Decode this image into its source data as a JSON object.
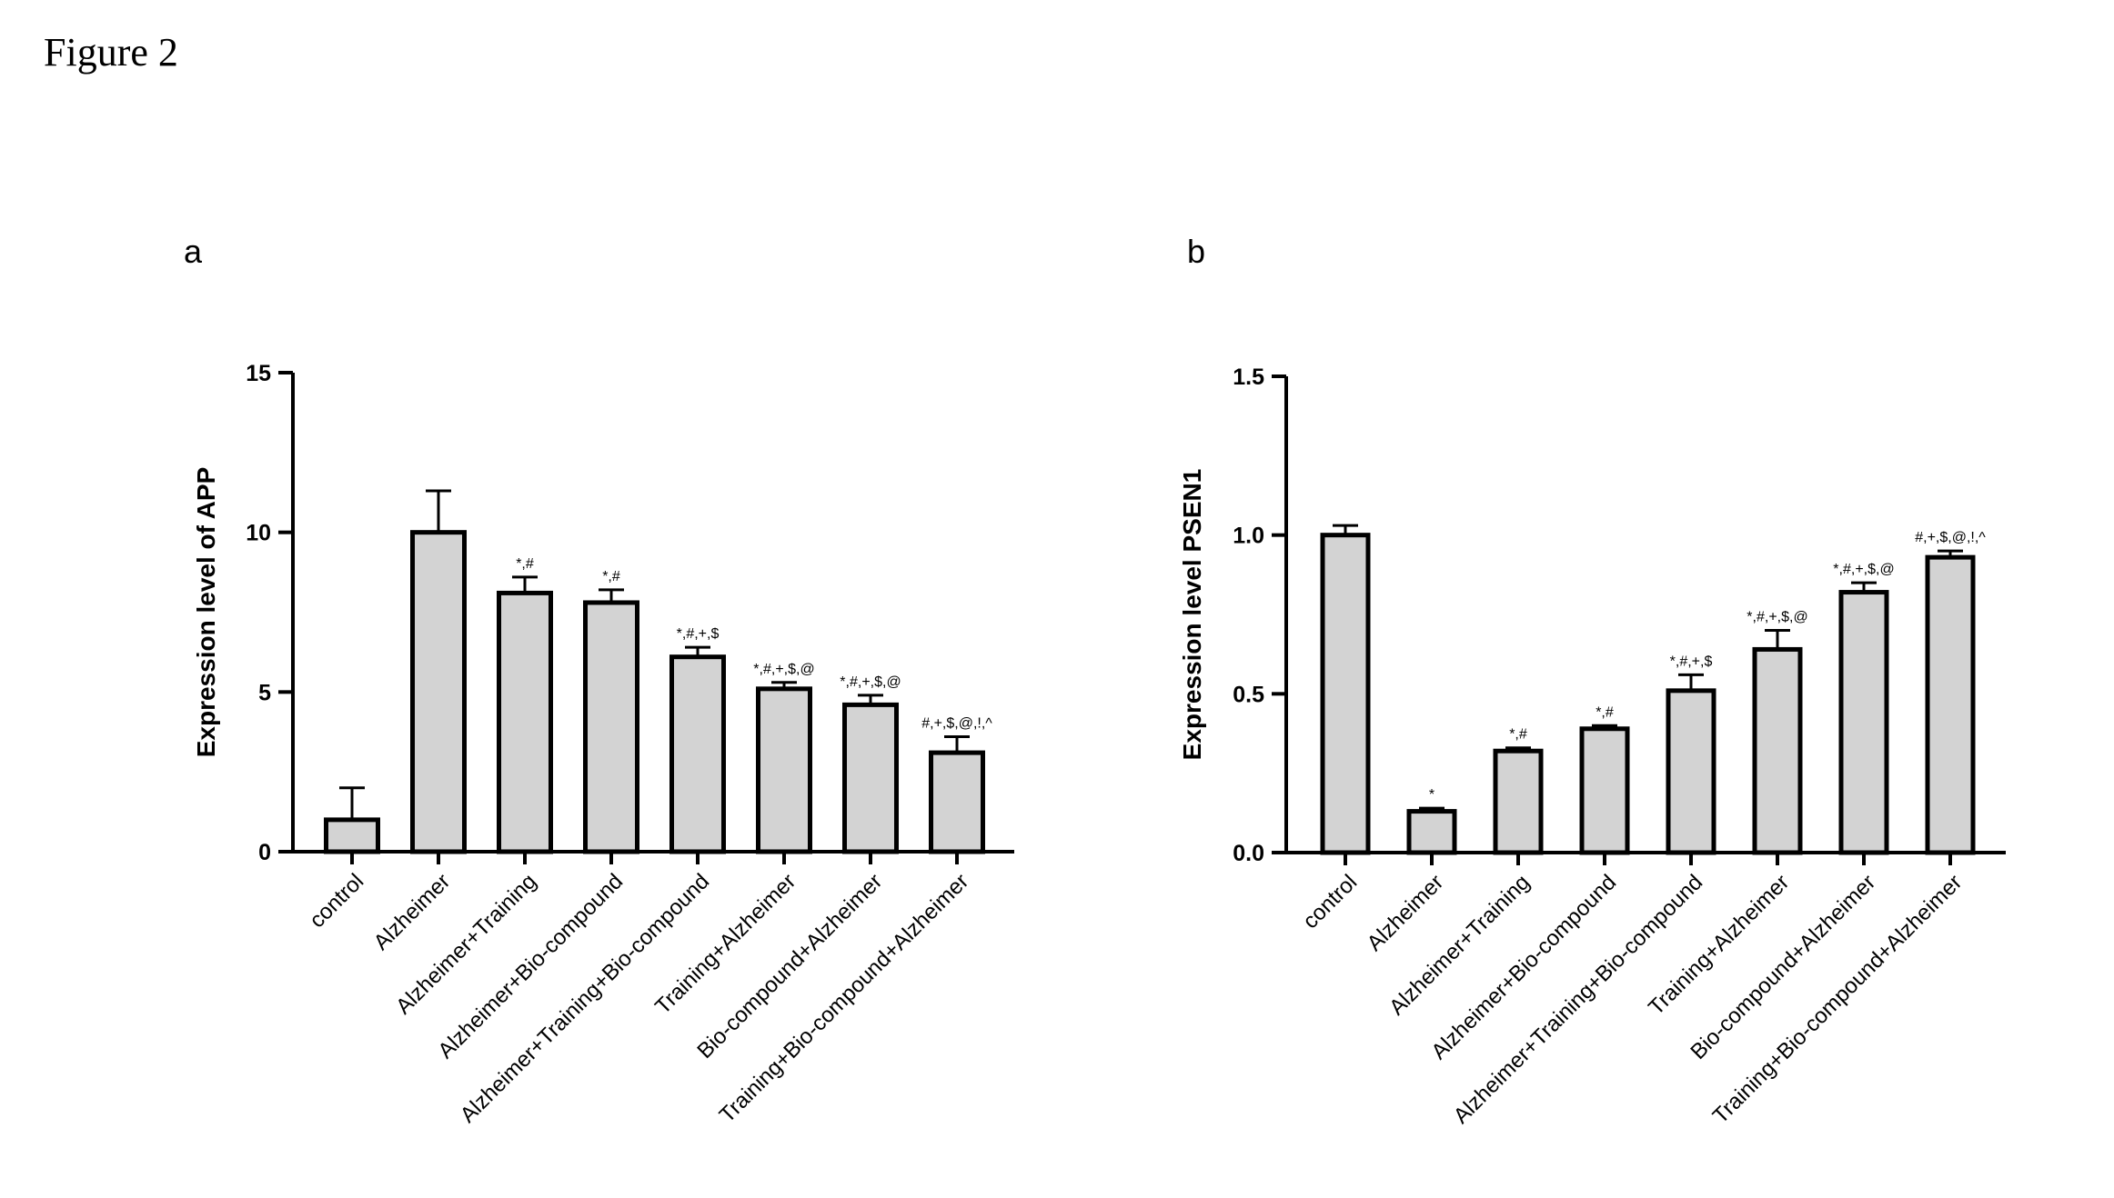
{
  "figure_title": "Figure 2",
  "chart_data": [
    {
      "panel": "a",
      "type": "bar",
      "ylabel": "Expression level of APP",
      "xlabel": "",
      "ylim": [
        0,
        15
      ],
      "yticks": [
        0,
        5,
        10,
        15
      ],
      "categories": [
        "control",
        "Alzheimer",
        "Alzheimer+Training",
        "Alzheimer+Bio-compound",
        "Alzheimer+Training+Bio-compound",
        "Training+Alzheimer",
        "Bio-compound+Alzheimer",
        "Training+Bio-compound+Alzheimer"
      ],
      "values": [
        1.0,
        10.0,
        8.1,
        7.8,
        6.1,
        5.1,
        4.6,
        3.1
      ],
      "errors": [
        1.0,
        1.3,
        0.5,
        0.4,
        0.3,
        0.2,
        0.3,
        0.5
      ],
      "annotations": [
        "",
        "",
        "*,#",
        "*,#",
        "*,#,+,$",
        "*,#,+,$,@",
        "*,#,+,$,@",
        "#,+,$,@,!,^"
      ],
      "bar_color": "#d3d3d3",
      "edge_color": "#000000"
    },
    {
      "panel": "b",
      "type": "bar",
      "ylabel": "Expression level PSEN1",
      "xlabel": "",
      "ylim": [
        0,
        1.5
      ],
      "yticks": [
        "0.0",
        "0.5",
        "1.0",
        "1.5"
      ],
      "categories": [
        "control",
        "Alzheimer",
        "Alzheimer+Training",
        "Alzheimer+Bio-compound",
        "Alzheimer+Training+Bio-compound",
        "Training+Alzheimer",
        "Bio-compound+Alzheimer",
        "Training+Bio-compound+Alzheimer"
      ],
      "values": [
        1.0,
        0.13,
        0.32,
        0.39,
        0.51,
        0.64,
        0.82,
        0.93
      ],
      "errors": [
        0.03,
        0.01,
        0.01,
        0.01,
        0.05,
        0.06,
        0.03,
        0.02
      ],
      "annotations": [
        "",
        "*",
        "*,#",
        "*,#",
        "*,#,+,$",
        "*,#,+,$,@",
        "*,#,+,$,@",
        "#,+,$,@,!,^"
      ],
      "bar_color": "#d3d3d3",
      "edge_color": "#000000"
    }
  ]
}
